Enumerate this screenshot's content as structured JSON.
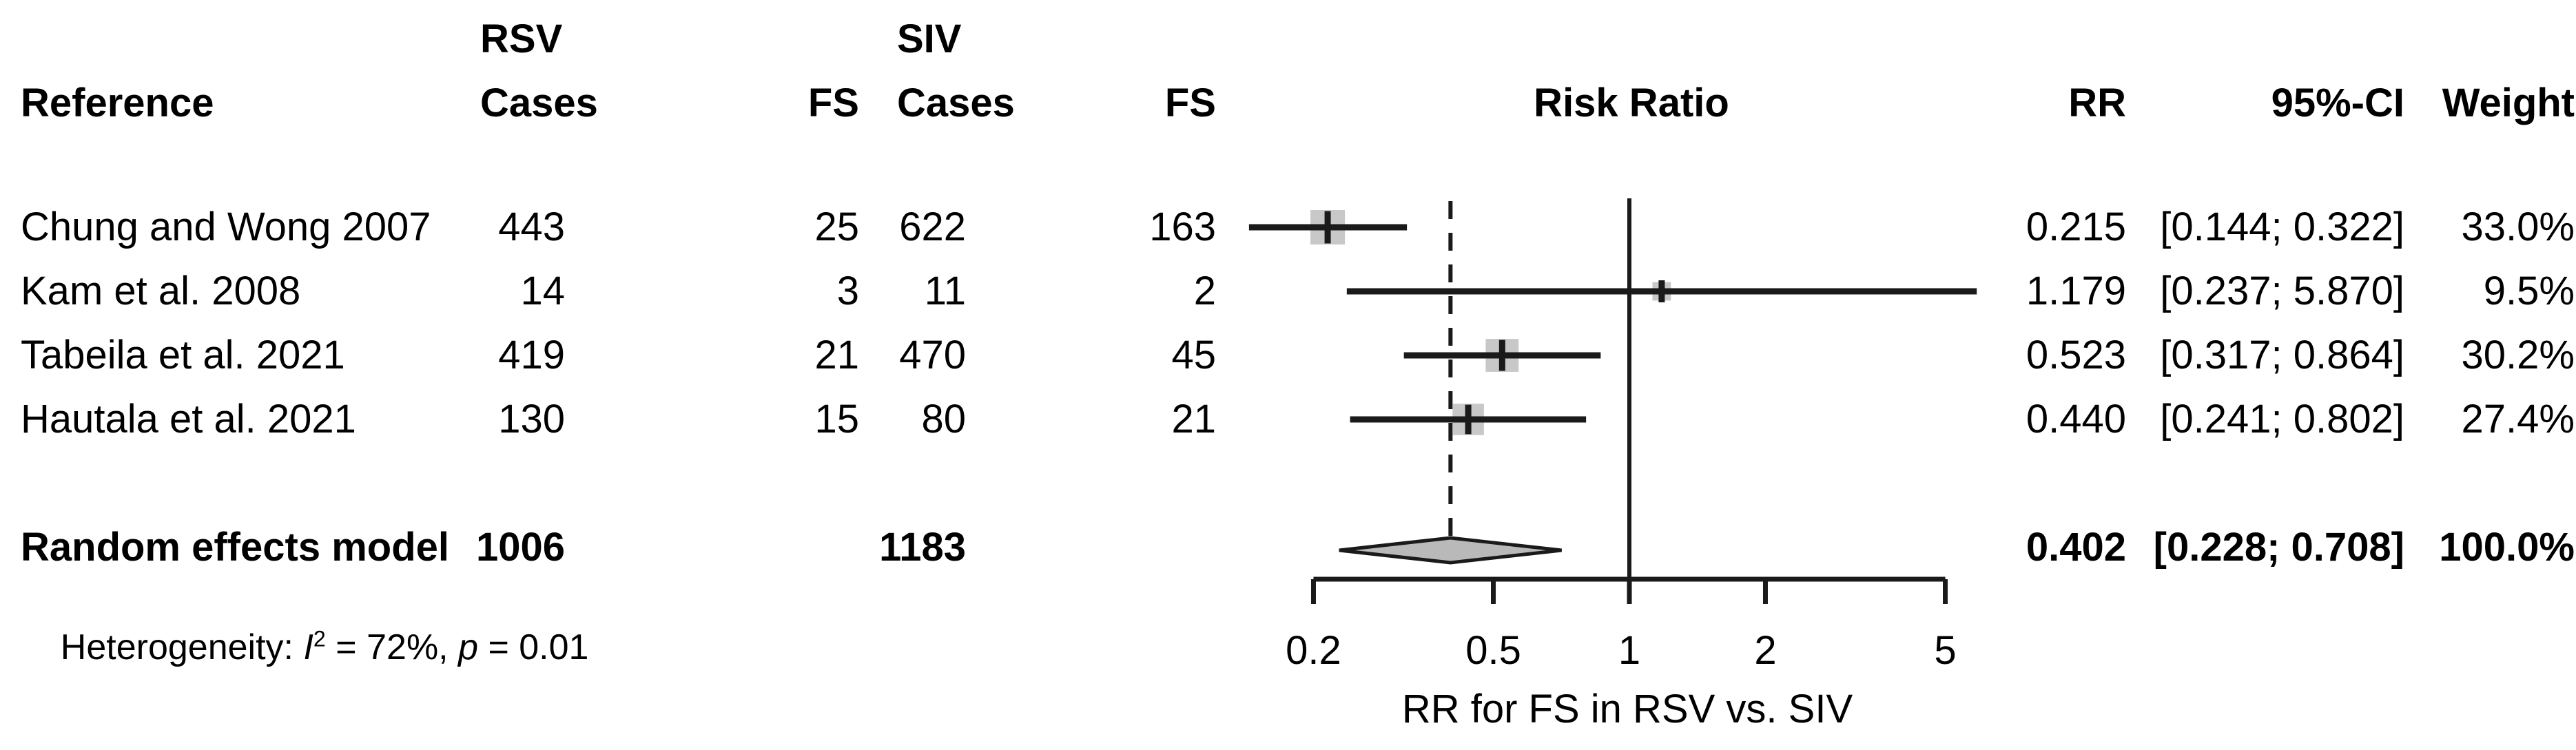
{
  "header": {
    "reference": "Reference",
    "rsv_group": "RSV",
    "rsv_cases": "Cases",
    "rsv_fs": "FS",
    "siv_group": "SIV",
    "siv_cases": "Cases",
    "siv_fs": "FS",
    "risk_ratio": "Risk Ratio",
    "rr": "RR",
    "ci": "95%-CI",
    "weight": "Weight"
  },
  "chart_data": {
    "type": "forest",
    "x_scale": "log",
    "axis": {
      "ticks": [
        0.2,
        0.5,
        1,
        2,
        5
      ],
      "range": [
        0.2,
        5
      ],
      "label": "RR for FS in RSV vs. SIV",
      "ref_line": 1
    },
    "studies": [
      {
        "reference": "Chung and Wong 2007",
        "rsv_cases": "443",
        "rsv_fs": "25",
        "siv_cases": "622",
        "siv_fs": "163",
        "rr": 0.215,
        "ci_low": 0.144,
        "ci_high": 0.322,
        "rr_text": "0.215",
        "ci_text": "[0.144; 0.322]",
        "weight": 33.0,
        "weight_text": "33.0%"
      },
      {
        "reference": "Kam et al. 2008",
        "rsv_cases": "14",
        "rsv_fs": "3",
        "siv_cases": "11",
        "siv_fs": "2",
        "rr": 1.179,
        "ci_low": 0.237,
        "ci_high": 5.87,
        "rr_text": "1.179",
        "ci_text": "[0.237; 5.870]",
        "weight": 9.5,
        "weight_text": "9.5%"
      },
      {
        "reference": "Tabeila et al. 2021",
        "rsv_cases": "419",
        "rsv_fs": "21",
        "siv_cases": "470",
        "siv_fs": "45",
        "rr": 0.523,
        "ci_low": 0.317,
        "ci_high": 0.864,
        "rr_text": "0.523",
        "ci_text": "[0.317; 0.864]",
        "weight": 30.2,
        "weight_text": "30.2%"
      },
      {
        "reference": "Hautala et al. 2021",
        "rsv_cases": "130",
        "rsv_fs": "15",
        "siv_cases": "80",
        "siv_fs": "21",
        "rr": 0.44,
        "ci_low": 0.241,
        "ci_high": 0.802,
        "rr_text": "0.440",
        "ci_text": "[0.241; 0.802]",
        "weight": 27.4,
        "weight_text": "27.4%"
      }
    ],
    "pooled": {
      "label": "Random effects model",
      "rsv_total": "1006",
      "siv_total": "1183",
      "rr": 0.402,
      "ci_low": 0.228,
      "ci_high": 0.708,
      "rr_text": "0.402",
      "ci_text": "[0.228; 0.708]",
      "weight_text": "100.0%"
    },
    "heterogeneity": {
      "prefix": "Heterogeneity: ",
      "i_symbol": "I",
      "i_sup": "2",
      "mid": " = 72%, ",
      "p_symbol": "p",
      "tail": " = 0.01"
    },
    "colors": {
      "line": "#1a1a1a",
      "marker_fill": "#c8c8c8",
      "diamond_fill": "#b9b9b9",
      "text": "#000000"
    }
  }
}
